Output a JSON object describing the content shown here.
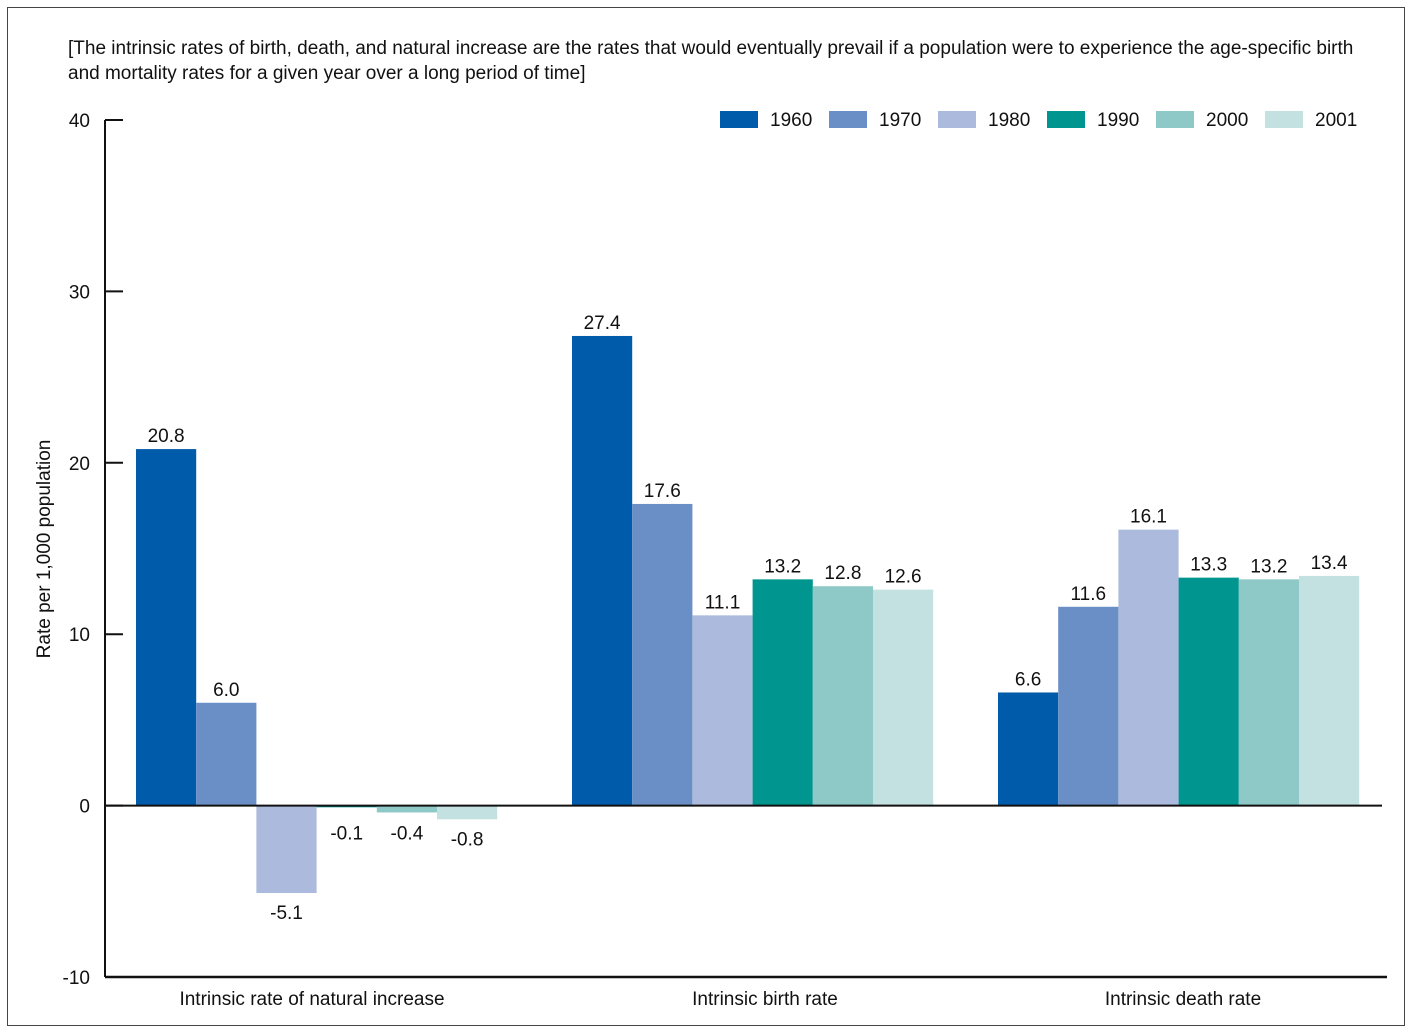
{
  "chart_data": {
    "type": "bar",
    "note": "[The intrinsic rates of birth, death, and natural increase are the rates that would eventually prevail if a population were to experience the age-specific birth and mortality rates for a given year over a long period of time]",
    "ylabel": "Rate per 1,000 population",
    "ylim": [
      -10,
      40
    ],
    "yticks": [
      "-10",
      "0",
      "10",
      "20",
      "30",
      "40"
    ],
    "ytick_values": [
      -10,
      0,
      10,
      20,
      30,
      40
    ],
    "categories": [
      "Intrinsic rate of natural increase",
      "Intrinsic birth rate",
      "Intrinsic death rate"
    ],
    "legend_position": "top-right",
    "series": [
      {
        "name": "1960",
        "color": "#005BAA",
        "values": [
          20.8,
          27.4,
          6.6
        ],
        "labels": [
          "20.8",
          "27.4",
          "6.6"
        ]
      },
      {
        "name": "1970",
        "color": "#6A8FC7",
        "values": [
          6.0,
          17.6,
          11.6
        ],
        "labels": [
          "6.0",
          "17.6",
          "11.6"
        ]
      },
      {
        "name": "1980",
        "color": "#ABBADD",
        "values": [
          -5.1,
          11.1,
          16.1
        ],
        "labels": [
          "-5.1",
          "11.1",
          "16.1"
        ]
      },
      {
        "name": "1990",
        "color": "#00968F",
        "values": [
          -0.1,
          13.2,
          13.3
        ],
        "labels": [
          "-0.1",
          "13.2",
          "13.3"
        ]
      },
      {
        "name": "2000",
        "color": "#8FC9C7",
        "values": [
          -0.4,
          12.8,
          13.2
        ],
        "labels": [
          "-0.4",
          "12.8",
          "13.2"
        ]
      },
      {
        "name": "2001",
        "color": "#C3E1E0",
        "values": [
          -0.8,
          12.6,
          13.4
        ],
        "labels": [
          "-0.8",
          "12.6",
          "13.4"
        ]
      }
    ]
  }
}
